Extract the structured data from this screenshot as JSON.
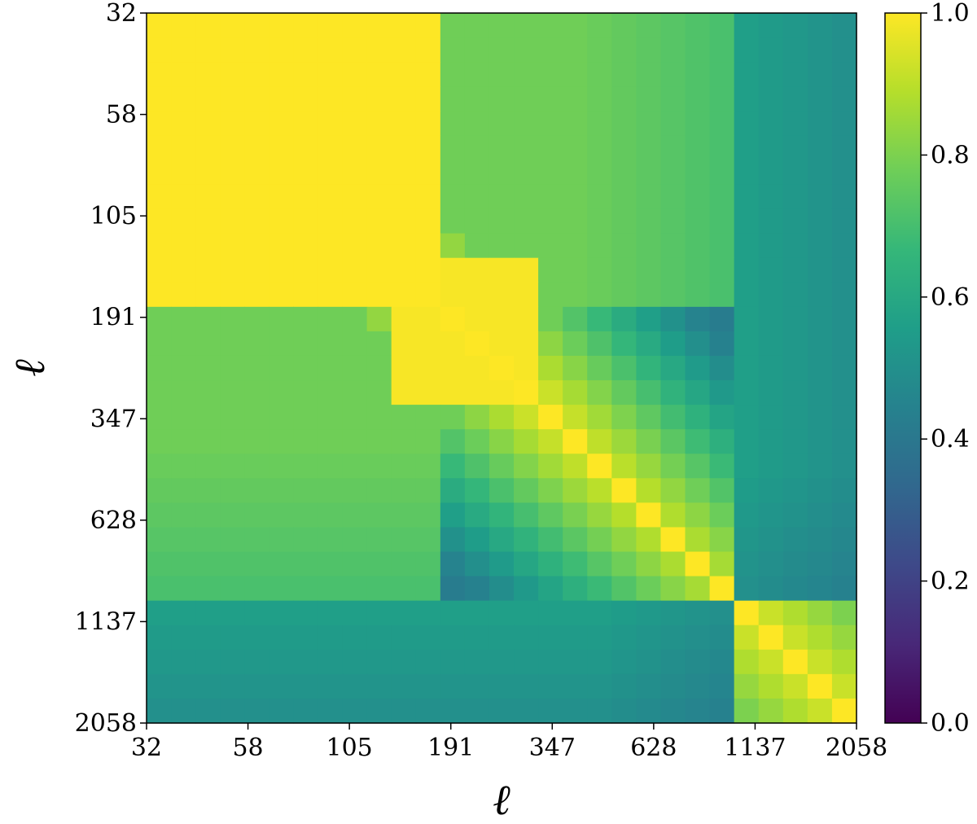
{
  "chart_data": {
    "type": "heatmap",
    "xlabel": "ℓ",
    "ylabel": "ℓ",
    "x_ticks": [
      "32",
      "58",
      "105",
      "191",
      "347",
      "628",
      "1137",
      "2058"
    ],
    "y_ticks": [
      "32",
      "58",
      "105",
      "191",
      "347",
      "628",
      "1137",
      "2058"
    ],
    "colorbar": {
      "colormap": "viridis",
      "range": [
        0.0,
        1.0
      ],
      "ticks": [
        "0.0",
        "0.2",
        "0.4",
        "0.6",
        "0.8",
        "1.0"
      ]
    },
    "n_cells": 29,
    "colors": {
      "cmap_stops": [
        "#440154",
        "#482878",
        "#3e4989",
        "#31688e",
        "#26828e",
        "#1f9e89",
        "#35b779",
        "#6ece58",
        "#b5de2b",
        "#fde725"
      ]
    }
  }
}
